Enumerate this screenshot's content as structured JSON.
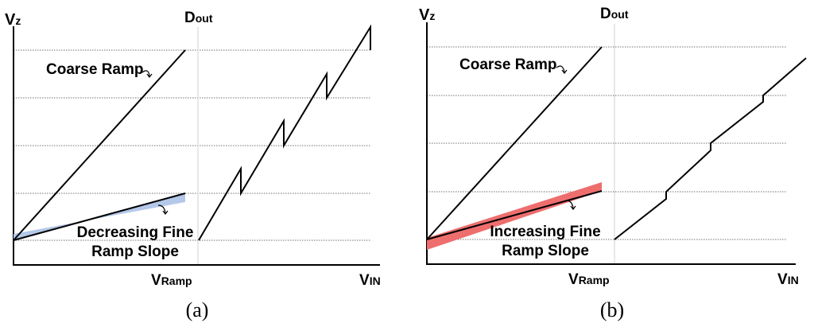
{
  "panels": [
    {
      "axis": {
        "y_label": "V",
        "y_sub": "z",
        "mid_label": "D",
        "mid_sub": "out",
        "x1_label": "V",
        "x1_sub": "Ramp",
        "x2_label": "V",
        "x2_sub": "IN"
      },
      "coarse_label": "Coarse Ramp",
      "fine_line1": "Decreasing Fine",
      "fine_line2": "Ramp Slope",
      "caption": "(a)",
      "band_color": "#b4c8ea"
    },
    {
      "axis": {
        "y_label": "V",
        "y_sub": "z",
        "mid_label": "D",
        "mid_sub": "out",
        "x1_label": "V",
        "x1_sub": "Ramp",
        "x2_label": "V",
        "x2_sub": "IN"
      },
      "coarse_label": "Coarse Ramp",
      "fine_line1": "Increasing Fine",
      "fine_line2": "Ramp Slope",
      "caption": "(b)",
      "band_color": "#ee6e6e"
    }
  ]
}
